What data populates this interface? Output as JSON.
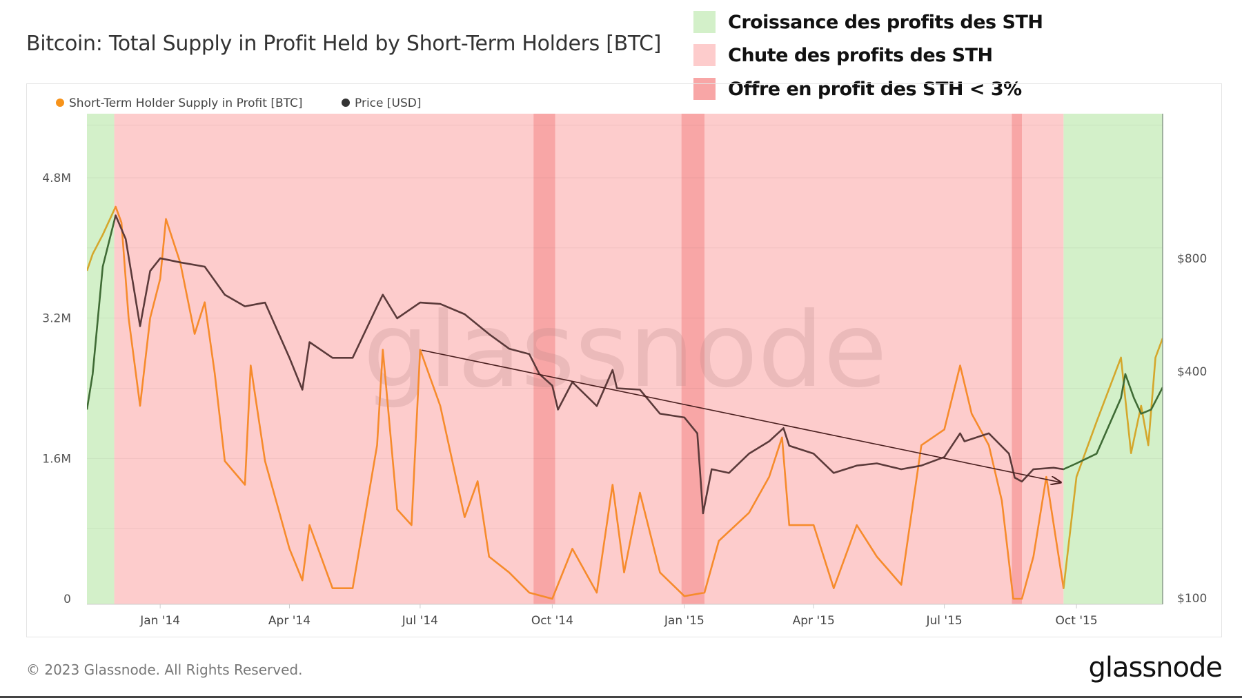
{
  "title": "Bitcoin: Total Supply in Profit Held by Short-Term Holders [BTC]",
  "annotation_legend": [
    {
      "label": "Croissance des profits des STH",
      "color": "#d3f0c9"
    },
    {
      "label": "Chute des profits des STH",
      "color": "#fdcccc"
    },
    {
      "label": "Offre en profit des STH < 3%",
      "color": "#f8a6a6"
    }
  ],
  "footer": "© 2023 Glassnode. All Rights Reserved.",
  "logo": "glassnode",
  "watermark": "glassnode",
  "chart_data": {
    "type": "line",
    "title": "Bitcoin: Total Supply in Profit Held by Short-Term Holders [BTC]",
    "legend_position": "top-left",
    "grid": true,
    "x_range": [
      "2013-11-11",
      "2015-11-30"
    ],
    "x_ticks": [
      "Jan '14",
      "Apr '14",
      "Jul '14",
      "Oct '14",
      "Jan '15",
      "Apr '15",
      "Jul '15",
      "Oct '15"
    ],
    "x_tick_dates": [
      "2014-01-01",
      "2014-04-01",
      "2014-07-01",
      "2014-10-01",
      "2015-01-01",
      "2015-04-01",
      "2015-07-01",
      "2015-10-01"
    ],
    "y_left": {
      "scale": "linear",
      "ticks": [
        "0",
        "1.6M",
        "3.2M",
        "4.8M"
      ],
      "tick_values": [
        0,
        1.6,
        3.2,
        4.8
      ],
      "unit": "M BTC"
    },
    "y_right": {
      "scale": "log",
      "ticks": [
        "$100",
        "$400",
        "$800"
      ],
      "tick_values": [
        100,
        400,
        800
      ]
    },
    "regions": [
      {
        "type": "growth",
        "start": "2013-11-11",
        "end": "2013-11-30",
        "color": "#d3f0c9"
      },
      {
        "type": "decline",
        "start": "2013-11-30",
        "end": "2015-09-22",
        "color": "#fdcccc"
      },
      {
        "type": "below3pct",
        "start": "2014-09-18",
        "end": "2014-10-03",
        "color": "#f8a6a6"
      },
      {
        "type": "below3pct",
        "start": "2014-12-30",
        "end": "2015-01-15",
        "color": "#f8a6a6"
      },
      {
        "type": "below3pct",
        "start": "2015-08-17",
        "end": "2015-08-24",
        "color": "#f8a6a6"
      },
      {
        "type": "growth",
        "start": "2015-09-22",
        "end": "2015-11-30",
        "color": "#d3f0c9"
      }
    ],
    "trendline": {
      "start": [
        "2014-07-02",
        456
      ],
      "end": [
        "2015-09-20",
        203
      ],
      "axis": "right",
      "color": "#4a1f1f"
    },
    "series": [
      {
        "name": "Short-Term Holder Supply in Profit [BTC]",
        "axis": "left",
        "color": "#f68b2c",
        "color_in_growth": "#d4a72c",
        "points": [
          [
            "2013-11-11",
            3.74
          ],
          [
            "2013-11-15",
            3.93
          ],
          [
            "2013-11-22",
            4.15
          ],
          [
            "2013-12-01",
            4.47
          ],
          [
            "2013-12-05",
            4.29
          ],
          [
            "2013-12-10",
            3.2
          ],
          [
            "2013-12-18",
            2.2
          ],
          [
            "2013-12-25",
            3.2
          ],
          [
            "2014-01-01",
            3.65
          ],
          [
            "2014-01-05",
            4.33
          ],
          [
            "2014-01-15",
            3.83
          ],
          [
            "2014-01-25",
            3.02
          ],
          [
            "2014-02-01",
            3.38
          ],
          [
            "2014-02-08",
            2.57
          ],
          [
            "2014-02-15",
            1.57
          ],
          [
            "2014-03-01",
            1.3
          ],
          [
            "2014-03-05",
            2.66
          ],
          [
            "2014-03-15",
            1.57
          ],
          [
            "2014-04-01",
            0.57
          ],
          [
            "2014-04-10",
            0.21
          ],
          [
            "2014-04-15",
            0.84
          ],
          [
            "2014-05-01",
            0.12
          ],
          [
            "2014-05-15",
            0.12
          ],
          [
            "2014-06-01",
            1.75
          ],
          [
            "2014-06-05",
            2.84
          ],
          [
            "2014-06-15",
            1.02
          ],
          [
            "2014-06-25",
            0.84
          ],
          [
            "2014-07-01",
            2.84
          ],
          [
            "2014-07-15",
            2.2
          ],
          [
            "2014-08-01",
            0.93
          ],
          [
            "2014-08-10",
            1.34
          ],
          [
            "2014-08-18",
            0.48
          ],
          [
            "2014-09-01",
            0.3
          ],
          [
            "2014-09-15",
            0.07
          ],
          [
            "2014-10-01",
            0
          ],
          [
            "2014-10-15",
            0.57
          ],
          [
            "2014-11-01",
            0.07
          ],
          [
            "2014-11-12",
            1.3
          ],
          [
            "2014-11-20",
            0.3
          ],
          [
            "2014-12-01",
            1.21
          ],
          [
            "2014-12-15",
            0.3
          ],
          [
            "2015-01-01",
            0.03
          ],
          [
            "2015-01-15",
            0.07
          ],
          [
            "2015-01-25",
            0.66
          ],
          [
            "2015-02-15",
            0.98
          ],
          [
            "2015-03-01",
            1.39
          ],
          [
            "2015-03-10",
            1.84
          ],
          [
            "2015-03-15",
            0.84
          ],
          [
            "2015-04-01",
            0.84
          ],
          [
            "2015-04-15",
            0.12
          ],
          [
            "2015-05-01",
            0.84
          ],
          [
            "2015-05-15",
            0.48
          ],
          [
            "2015-06-01",
            0.16
          ],
          [
            "2015-06-15",
            1.75
          ],
          [
            "2015-07-01",
            1.93
          ],
          [
            "2015-07-12",
            2.66
          ],
          [
            "2015-07-20",
            2.11
          ],
          [
            "2015-08-01",
            1.75
          ],
          [
            "2015-08-10",
            1.12
          ],
          [
            "2015-08-18",
            0
          ],
          [
            "2015-08-24",
            0
          ],
          [
            "2015-09-01",
            0.48
          ],
          [
            "2015-09-10",
            1.39
          ],
          [
            "2015-09-22",
            0.12
          ],
          [
            "2015-10-01",
            1.39
          ],
          [
            "2015-10-15",
            2.02
          ],
          [
            "2015-11-01",
            2.75
          ],
          [
            "2015-11-08",
            1.66
          ],
          [
            "2015-11-15",
            2.2
          ],
          [
            "2015-11-20",
            1.75
          ],
          [
            "2015-11-25",
            2.75
          ],
          [
            "2015-11-30",
            2.97
          ]
        ]
      },
      {
        "name": "Price [USD]",
        "axis": "right",
        "color": "#5b3a3a",
        "color_in_growth": "#3f6b35",
        "points": [
          [
            "2013-11-11",
            317
          ],
          [
            "2013-11-15",
            394
          ],
          [
            "2013-11-22",
            760
          ],
          [
            "2013-12-01",
            1040
          ],
          [
            "2013-12-08",
            900
          ],
          [
            "2013-12-18",
            528
          ],
          [
            "2013-12-25",
            740
          ],
          [
            "2014-01-01",
            800
          ],
          [
            "2014-01-15",
            780
          ],
          [
            "2014-02-01",
            760
          ],
          [
            "2014-02-15",
            640
          ],
          [
            "2014-03-01",
            596
          ],
          [
            "2014-03-15",
            610
          ],
          [
            "2014-04-01",
            435
          ],
          [
            "2014-04-10",
            358
          ],
          [
            "2014-04-15",
            479
          ],
          [
            "2014-05-01",
            435
          ],
          [
            "2014-05-15",
            435
          ],
          [
            "2014-06-01",
            596
          ],
          [
            "2014-06-05",
            640
          ],
          [
            "2014-06-15",
            554
          ],
          [
            "2014-07-01",
            610
          ],
          [
            "2014-07-15",
            605
          ],
          [
            "2014-08-01",
            568
          ],
          [
            "2014-08-18",
            503
          ],
          [
            "2014-09-01",
            460
          ],
          [
            "2014-09-15",
            445
          ],
          [
            "2014-09-22",
            394
          ],
          [
            "2014-10-01",
            367
          ],
          [
            "2014-10-05",
            317
          ],
          [
            "2014-10-15",
            375
          ],
          [
            "2014-11-01",
            324
          ],
          [
            "2014-11-12",
            404
          ],
          [
            "2014-11-15",
            361
          ],
          [
            "2014-12-01",
            358
          ],
          [
            "2014-12-15",
            309
          ],
          [
            "2015-01-01",
            302
          ],
          [
            "2015-01-10",
            274
          ],
          [
            "2015-01-14",
            168
          ],
          [
            "2015-01-20",
            220
          ],
          [
            "2015-02-01",
            215
          ],
          [
            "2015-02-15",
            242
          ],
          [
            "2015-03-01",
            261
          ],
          [
            "2015-03-11",
            283
          ],
          [
            "2015-03-15",
            254
          ],
          [
            "2015-04-01",
            242
          ],
          [
            "2015-04-15",
            215
          ],
          [
            "2015-05-01",
            225
          ],
          [
            "2015-05-15",
            228
          ],
          [
            "2015-06-01",
            220
          ],
          [
            "2015-06-15",
            225
          ],
          [
            "2015-07-01",
            237
          ],
          [
            "2015-07-12",
            274
          ],
          [
            "2015-07-15",
            261
          ],
          [
            "2015-08-01",
            274
          ],
          [
            "2015-08-15",
            242
          ],
          [
            "2015-08-19",
            209
          ],
          [
            "2015-08-24",
            204
          ],
          [
            "2015-09-01",
            220
          ],
          [
            "2015-09-15",
            222
          ],
          [
            "2015-09-22",
            220
          ],
          [
            "2015-10-01",
            228
          ],
          [
            "2015-10-15",
            242
          ],
          [
            "2015-11-01",
            340
          ],
          [
            "2015-11-04",
            394
          ],
          [
            "2015-11-10",
            340
          ],
          [
            "2015-11-15",
            309
          ],
          [
            "2015-11-22",
            317
          ],
          [
            "2015-11-30",
            363
          ]
        ]
      }
    ]
  }
}
